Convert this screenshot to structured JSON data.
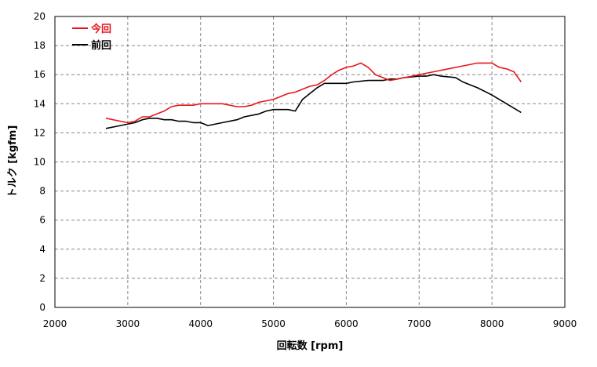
{
  "chart_data": {
    "type": "line",
    "xlabel": "回転数 [rpm]",
    "ylabel": "トルク [kgfm]",
    "xlim": [
      2000,
      9000
    ],
    "ylim": [
      0,
      20
    ],
    "x_ticks": [
      2000,
      3000,
      4000,
      5000,
      6000,
      7000,
      8000,
      9000
    ],
    "y_ticks": [
      0,
      2,
      4,
      6,
      8,
      10,
      12,
      14,
      16,
      18,
      20
    ],
    "grid": true,
    "legend_position": "top-left",
    "series": [
      {
        "name": "今回",
        "color": "#e8161c",
        "points": [
          [
            2700,
            13.0
          ],
          [
            2900,
            12.8
          ],
          [
            3000,
            12.7
          ],
          [
            3100,
            12.8
          ],
          [
            3200,
            13.1
          ],
          [
            3300,
            13.1
          ],
          [
            3400,
            13.3
          ],
          [
            3500,
            13.5
          ],
          [
            3600,
            13.8
          ],
          [
            3700,
            13.9
          ],
          [
            3900,
            13.9
          ],
          [
            4000,
            14.0
          ],
          [
            4300,
            14.0
          ],
          [
            4500,
            13.8
          ],
          [
            4600,
            13.8
          ],
          [
            4700,
            13.9
          ],
          [
            4800,
            14.1
          ],
          [
            4900,
            14.2
          ],
          [
            5000,
            14.3
          ],
          [
            5100,
            14.5
          ],
          [
            5200,
            14.7
          ],
          [
            5300,
            14.8
          ],
          [
            5400,
            15.0
          ],
          [
            5500,
            15.2
          ],
          [
            5600,
            15.3
          ],
          [
            5700,
            15.6
          ],
          [
            5800,
            16.0
          ],
          [
            5900,
            16.3
          ],
          [
            6000,
            16.5
          ],
          [
            6100,
            16.6
          ],
          [
            6200,
            16.8
          ],
          [
            6300,
            16.5
          ],
          [
            6400,
            16.0
          ],
          [
            6500,
            15.8
          ],
          [
            6600,
            15.6
          ],
          [
            6700,
            15.7
          ],
          [
            6800,
            15.8
          ],
          [
            6900,
            15.9
          ],
          [
            7000,
            16.0
          ],
          [
            7200,
            16.2
          ],
          [
            7400,
            16.4
          ],
          [
            7600,
            16.6
          ],
          [
            7800,
            16.8
          ],
          [
            8000,
            16.8
          ],
          [
            8100,
            16.5
          ],
          [
            8200,
            16.4
          ],
          [
            8300,
            16.2
          ],
          [
            8400,
            15.5
          ]
        ]
      },
      {
        "name": "前回",
        "color": "#000000",
        "points": [
          [
            2700,
            12.3
          ],
          [
            2900,
            12.5
          ],
          [
            3100,
            12.7
          ],
          [
            3200,
            12.9
          ],
          [
            3300,
            13.0
          ],
          [
            3400,
            13.0
          ],
          [
            3500,
            12.9
          ],
          [
            3600,
            12.9
          ],
          [
            3700,
            12.8
          ],
          [
            3800,
            12.8
          ],
          [
            3900,
            12.7
          ],
          [
            4000,
            12.7
          ],
          [
            4100,
            12.5
          ],
          [
            4300,
            12.7
          ],
          [
            4500,
            12.9
          ],
          [
            4600,
            13.1
          ],
          [
            4800,
            13.3
          ],
          [
            4900,
            13.5
          ],
          [
            5000,
            13.6
          ],
          [
            5200,
            13.6
          ],
          [
            5300,
            13.5
          ],
          [
            5400,
            14.3
          ],
          [
            5500,
            14.7
          ],
          [
            5600,
            15.1
          ],
          [
            5700,
            15.4
          ],
          [
            6000,
            15.4
          ],
          [
            6100,
            15.5
          ],
          [
            6300,
            15.6
          ],
          [
            6500,
            15.6
          ],
          [
            6600,
            15.7
          ],
          [
            6700,
            15.7
          ],
          [
            6800,
            15.8
          ],
          [
            7000,
            15.9
          ],
          [
            7100,
            15.9
          ],
          [
            7200,
            16.0
          ],
          [
            7300,
            15.9
          ],
          [
            7500,
            15.8
          ],
          [
            7600,
            15.5
          ],
          [
            7800,
            15.1
          ],
          [
            8000,
            14.6
          ],
          [
            8200,
            14.0
          ],
          [
            8400,
            13.4
          ]
        ]
      }
    ]
  }
}
